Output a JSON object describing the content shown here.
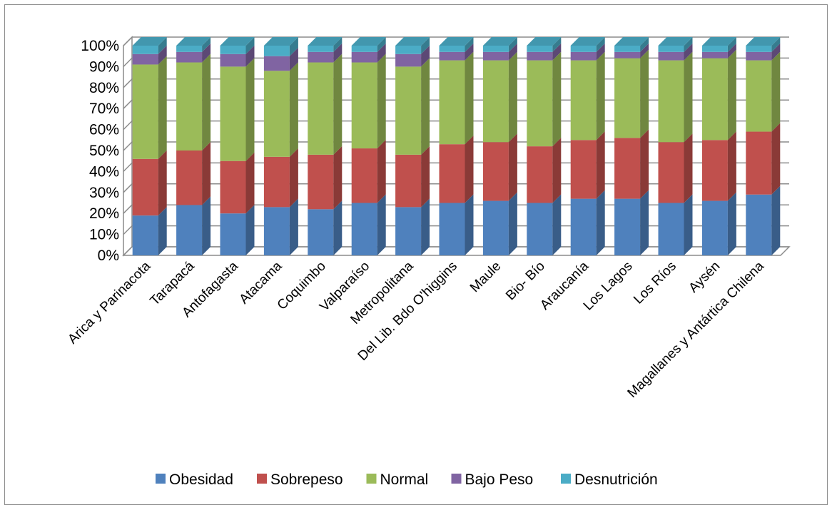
{
  "chart_data": {
    "type": "bar",
    "stacked": "percent",
    "three_d": true,
    "categories": [
      "Arica y Parinacota",
      "Tarapacá",
      "Antofagasta",
      "Atacama",
      "Coquimbo",
      "Valparaíso",
      "Metropolitana",
      "Del Lib. Bdo O'higgins",
      "Maule",
      "Bio- Bío",
      "Araucanía",
      "Los Lagos",
      "Los Ríos",
      "Aysén",
      "Magallanes y Antártica Chilena"
    ],
    "series": [
      {
        "name": "Obesidad",
        "color": "#4f81bd",
        "values": [
          19,
          24,
          20,
          23,
          22,
          25,
          23,
          25,
          26,
          25,
          27,
          27,
          25,
          26,
          29
        ]
      },
      {
        "name": "Sobrepeso",
        "color": "#c0504d",
        "values": [
          27,
          26,
          25,
          24,
          26,
          26,
          25,
          28,
          28,
          27,
          28,
          29,
          29,
          29,
          30
        ]
      },
      {
        "name": "Normal",
        "color": "#9bbb59",
        "values": [
          45,
          42,
          45,
          41,
          44,
          41,
          42,
          40,
          39,
          41,
          38,
          38,
          39,
          39,
          34
        ]
      },
      {
        "name": "Bajo Peso",
        "color": "#8064a2",
        "values": [
          5,
          5,
          6,
          7,
          5,
          5,
          6,
          4,
          4,
          4,
          4,
          3,
          4,
          3,
          4
        ]
      },
      {
        "name": "Desnutrición",
        "color": "#4bacc6",
        "values": [
          4,
          3,
          4,
          5,
          3,
          3,
          4,
          3,
          3,
          3,
          3,
          3,
          3,
          3,
          3
        ]
      }
    ],
    "yticks": [
      "0%",
      "10%",
      "20%",
      "30%",
      "40%",
      "50%",
      "60%",
      "70%",
      "80%",
      "90%",
      "100%"
    ],
    "ylim": [
      0,
      100
    ],
    "grid": true,
    "legend_position": "bottom"
  }
}
